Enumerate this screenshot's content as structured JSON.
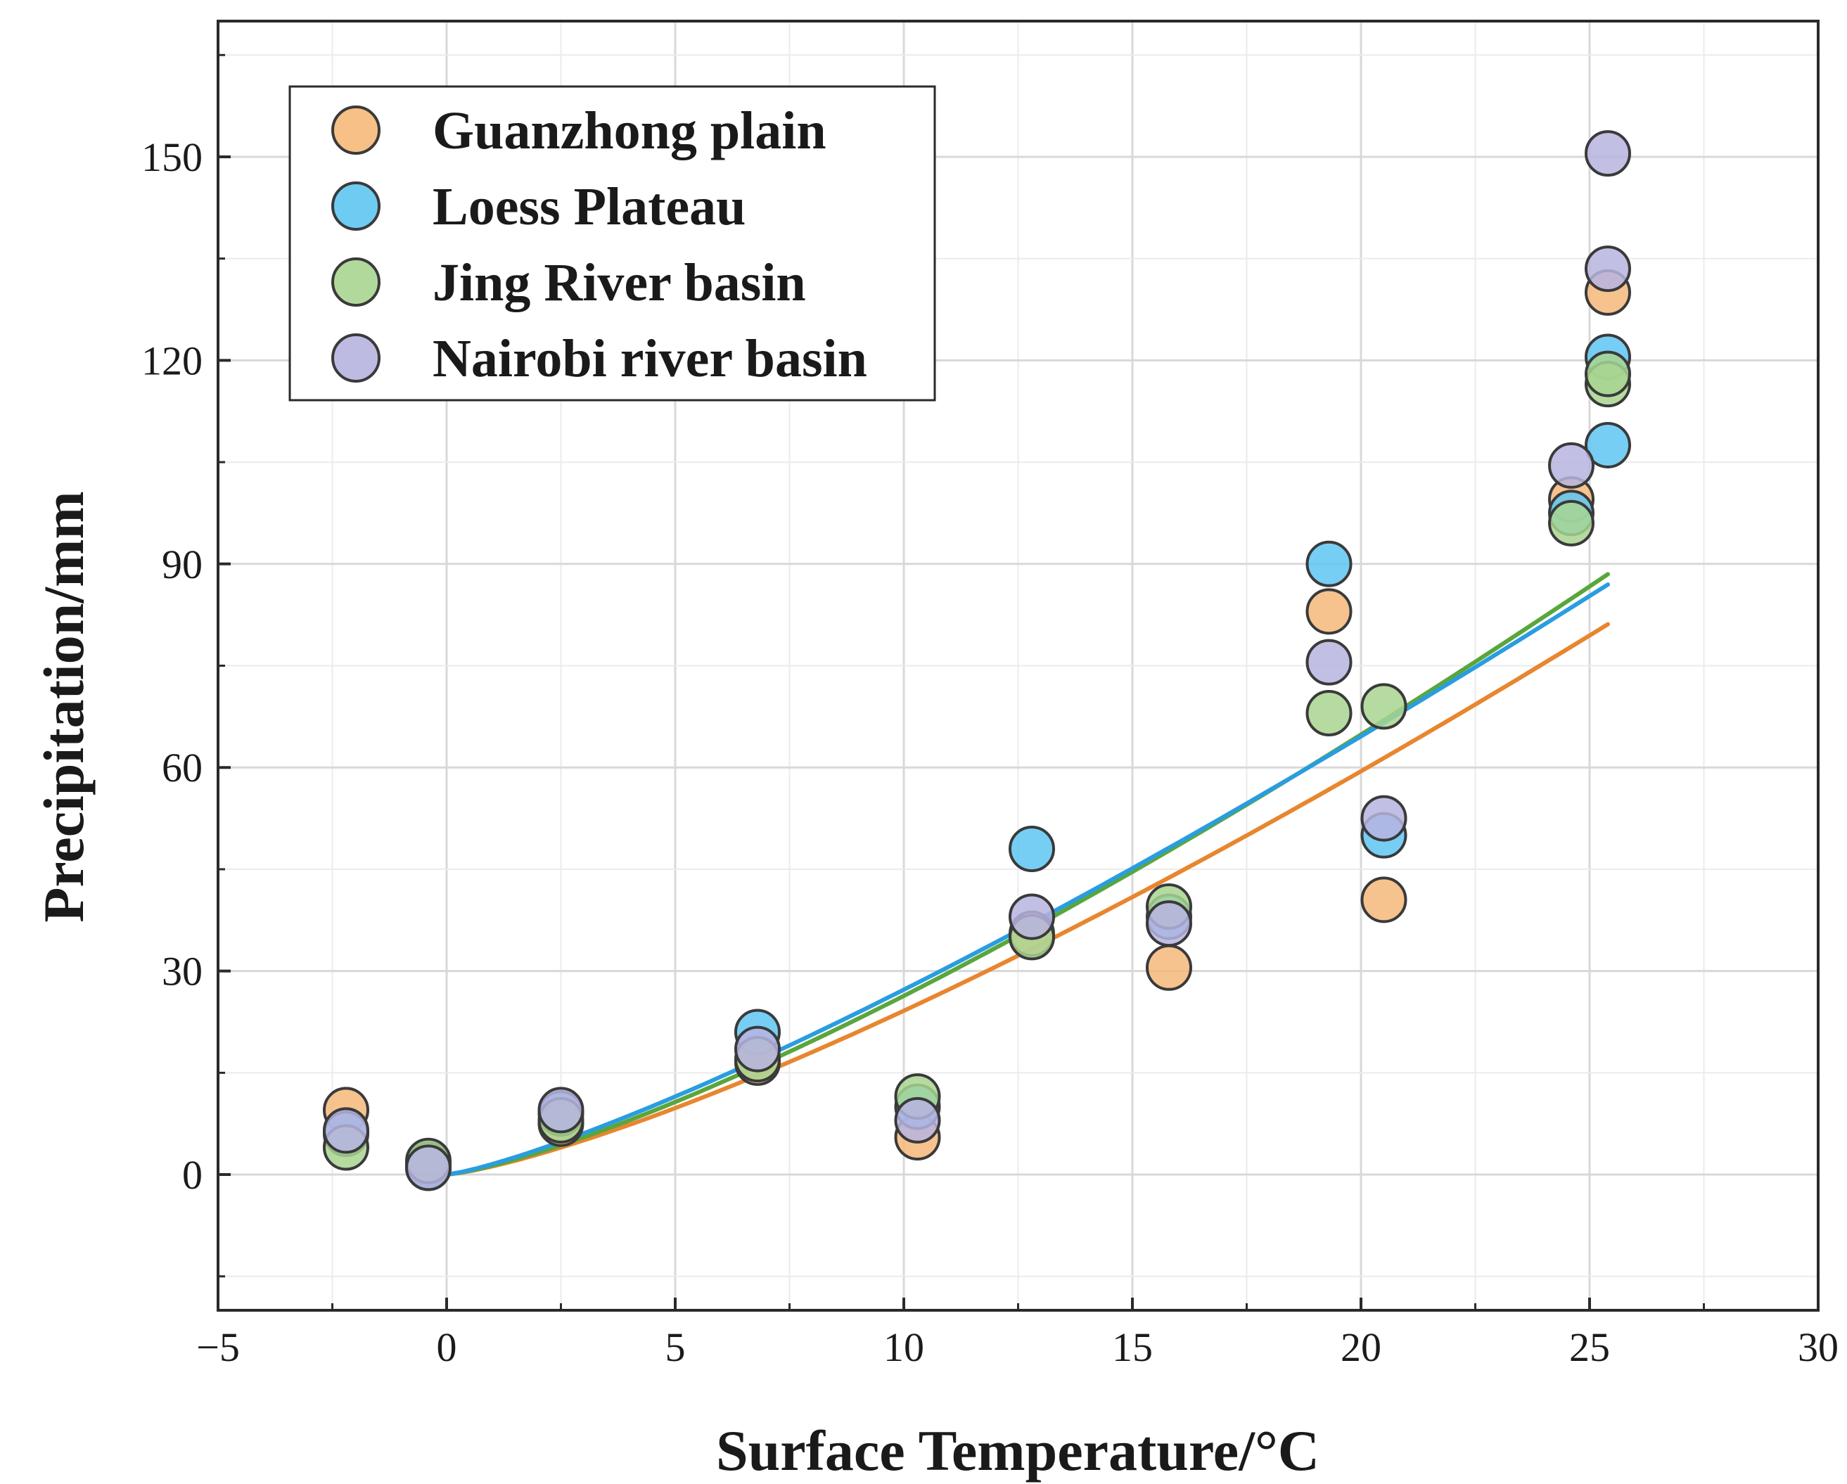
{
  "chart_data": {
    "type": "scatter",
    "title": "",
    "xlabel": "Surface Temperature/°C",
    "ylabel": "Precipitation/mm",
    "xlim": [
      -5,
      30
    ],
    "ylim": [
      -20,
      170
    ],
    "xticks": [
      -5,
      0,
      5,
      10,
      15,
      20,
      25,
      30
    ],
    "xtick_labels": [
      "−5",
      "0",
      "5",
      "10",
      "15",
      "20",
      "25",
      "30"
    ],
    "xminor": [
      -2.5,
      2.5,
      7.5,
      12.5,
      17.5,
      22.5,
      27.5
    ],
    "yticks": [
      0,
      30,
      60,
      90,
      120,
      150
    ],
    "ytick_labels": [
      "0",
      "30",
      "60",
      "90",
      "120",
      "150"
    ],
    "yminor": [
      -15,
      15,
      45,
      75,
      105,
      135,
      165
    ],
    "grid": true,
    "legend_position": "top-left",
    "series": [
      {
        "name": "Guanzhong plain",
        "color": "#f5b97a",
        "line_color": "#e8862f",
        "x": [
          -2.2,
          -0.4,
          2.5,
          6.8,
          10.3,
          12.8,
          15.8,
          19.3,
          20.5,
          24.6,
          25.4
        ],
        "y": [
          9.5,
          1.5,
          7.5,
          16.5,
          5.5,
          35.5,
          30.5,
          83,
          40.5,
          99.5,
          130
        ],
        "fit": {
          "coef": 1.21,
          "exp": 1.3,
          "x_end": 25.4
        }
      },
      {
        "name": "Loess Plateau",
        "color": "#5ec6f2",
        "line_color": "#2a9de0",
        "x": [
          -2.2,
          -0.4,
          2.5,
          6.8,
          10.3,
          12.8,
          15.8,
          19.3,
          20.5,
          24.6,
          25.4,
          25.4
        ],
        "y": [
          6,
          1,
          9,
          21,
          10,
          48,
          38,
          90,
          50,
          97.5,
          120.5,
          107.5
        ],
        "fit": {
          "coef": 1.55,
          "exp": 1.245,
          "x_end": 25.4
        }
      },
      {
        "name": "Jing River basin",
        "color": "#a8d590",
        "line_color": "#5aa63c",
        "x": [
          -2.2,
          -0.4,
          2.5,
          6.8,
          10.3,
          12.8,
          15.8,
          19.3,
          20.5,
          24.6,
          25.4,
          25.4
        ],
        "y": [
          4,
          2,
          8,
          17,
          11.5,
          35,
          39.5,
          68,
          69,
          96,
          116.5,
          118
        ],
        "fit": {
          "coef": 1.32,
          "exp": 1.3,
          "x_end": 25.4
        }
      },
      {
        "name": "Nairobi river basin",
        "color": "#b7b4e0",
        "line_color": "#8d86c9",
        "x": [
          -2.2,
          -0.4,
          2.5,
          6.8,
          10.3,
          12.8,
          15.8,
          19.3,
          20.5,
          24.6,
          25.4,
          25.4
        ],
        "y": [
          6.5,
          1,
          9.5,
          18.5,
          8,
          38,
          37,
          75.5,
          52.5,
          104.5,
          150.5,
          133.5
        ],
        "fit": null
      }
    ]
  }
}
